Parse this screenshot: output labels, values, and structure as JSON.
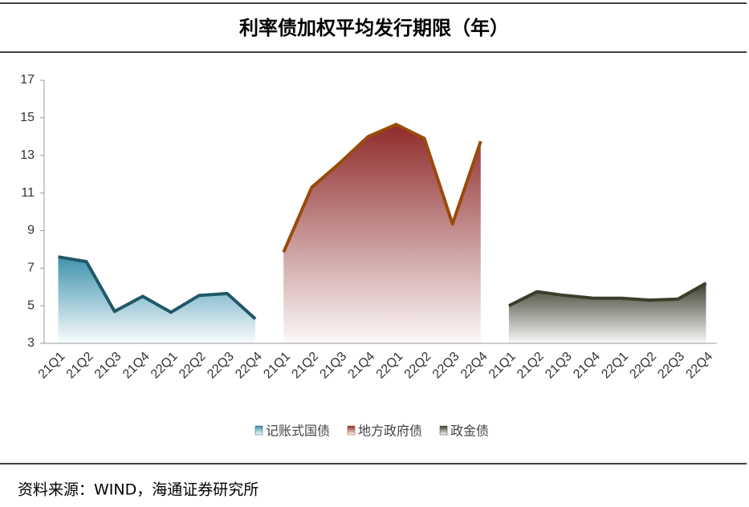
{
  "chart_data": {
    "type": "area_line",
    "title": "利率债加权平均发行期限（年）",
    "source": "资料来源：WIND，海通证券研究所",
    "categories": [
      "21Q1",
      "21Q2",
      "21Q3",
      "21Q4",
      "22Q1",
      "22Q2",
      "22Q3",
      "22Q4",
      "21Q1",
      "21Q2",
      "21Q3",
      "21Q4",
      "22Q1",
      "22Q2",
      "22Q3",
      "22Q4",
      "21Q1",
      "21Q2",
      "21Q3",
      "21Q4",
      "22Q1",
      "22Q2",
      "22Q3",
      "22Q4"
    ],
    "series": [
      {
        "name": "记账式国债",
        "color": "#1f5868",
        "fill": "#3f93ad",
        "values": [
          7.6,
          7.35,
          4.7,
          5.5,
          4.65,
          5.55,
          5.65,
          4.3,
          null,
          null,
          null,
          null,
          null,
          null,
          null,
          null,
          null,
          null,
          null,
          null,
          null,
          null,
          null,
          null
        ]
      },
      {
        "name": "地方政府债",
        "color": "#9a4a0a",
        "fill": "#8e2a2a",
        "values": [
          null,
          null,
          null,
          null,
          null,
          null,
          null,
          null,
          7.85,
          11.3,
          12.6,
          14.0,
          14.65,
          13.9,
          9.35,
          13.75,
          null,
          null,
          null,
          null,
          null,
          null,
          null,
          null
        ]
      },
      {
        "name": "政金债",
        "color": "#3d3d2c",
        "fill": "#3f3f30",
        "values": [
          null,
          null,
          null,
          null,
          null,
          null,
          null,
          null,
          null,
          null,
          null,
          null,
          null,
          null,
          null,
          null,
          5.0,
          5.75,
          5.55,
          5.4,
          5.4,
          5.3,
          5.35,
          6.2
        ]
      }
    ],
    "ylim": [
      3,
      17
    ],
    "yticks": [
      3,
      5,
      7,
      9,
      11,
      13,
      15,
      17
    ]
  }
}
